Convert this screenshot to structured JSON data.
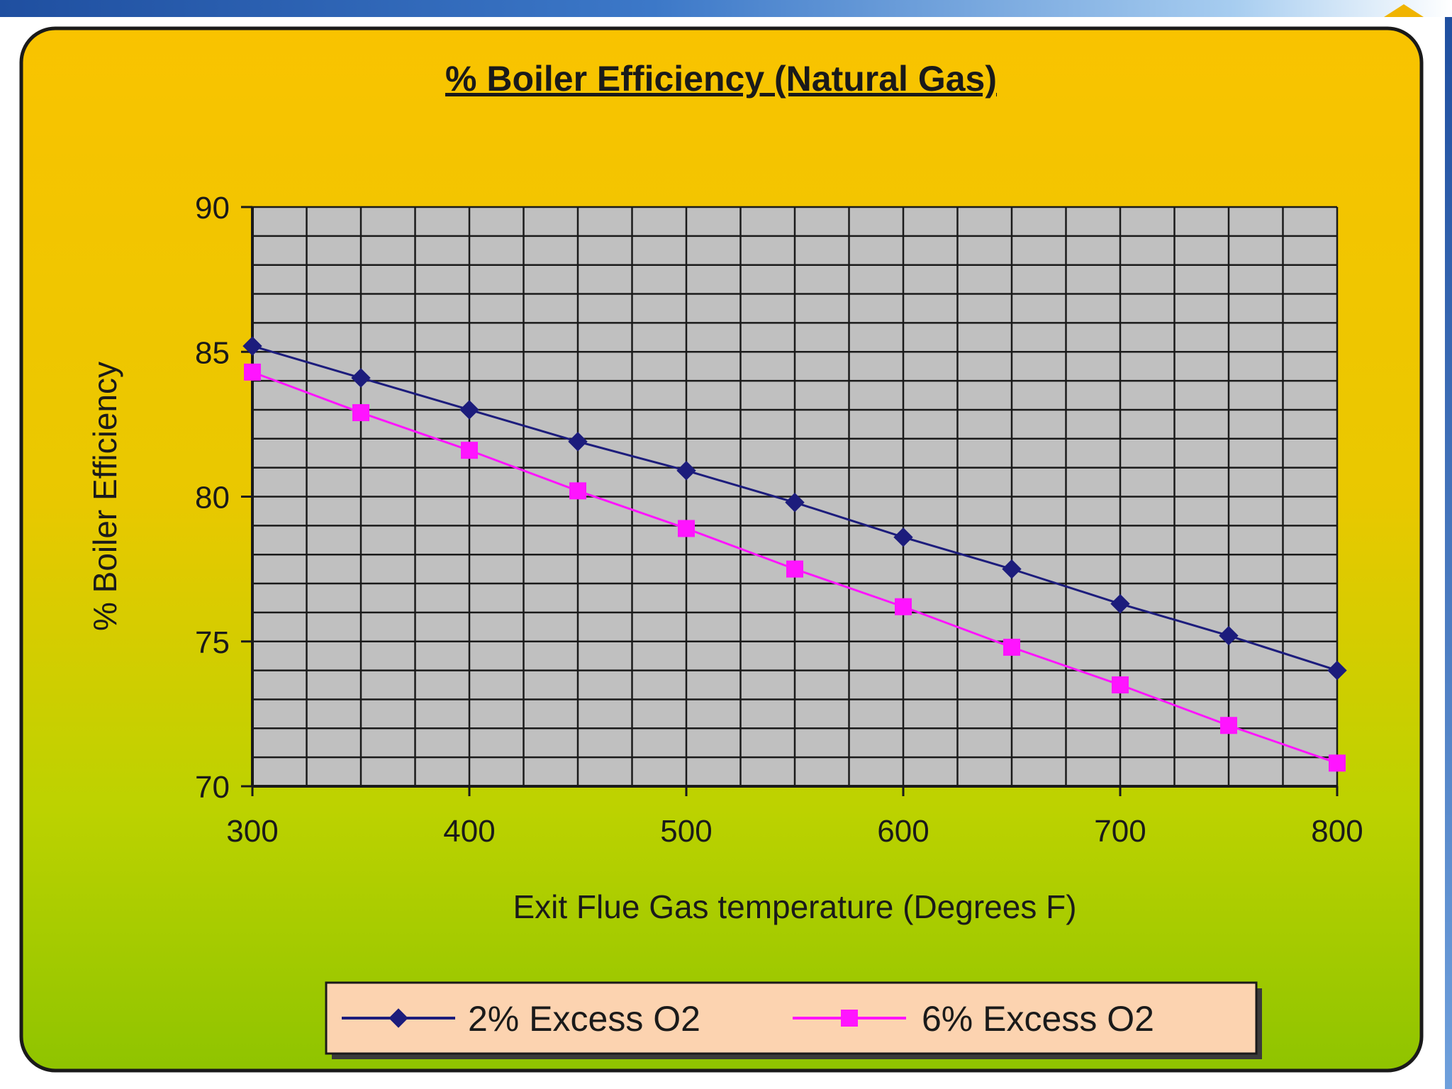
{
  "chart_data": {
    "type": "line",
    "title": "% Boiler Efficiency (Natural Gas)",
    "xlabel": "Exit Flue Gas temperature (Degrees F)",
    "ylabel": "% Boiler Efficiency",
    "xlim": [
      300,
      800
    ],
    "ylim": [
      70,
      90
    ],
    "x_ticks": [
      "300",
      "400",
      "500",
      "600",
      "700",
      "800"
    ],
    "y_ticks": [
      "70",
      "75",
      "80",
      "85",
      "90"
    ],
    "grid": true,
    "legend_position": "bottom",
    "x": [
      300,
      350,
      400,
      450,
      500,
      550,
      600,
      650,
      700,
      750,
      800
    ],
    "series": [
      {
        "name": "2% Excess O2",
        "color": "#1c1c7c",
        "marker": "diamond",
        "values": [
          85.2,
          84.1,
          83.0,
          81.9,
          80.9,
          79.8,
          78.6,
          77.5,
          76.3,
          75.2,
          74.0
        ]
      },
      {
        "name": "6% Excess O2",
        "color": "#ff14ff",
        "marker": "square",
        "values": [
          84.3,
          82.9,
          81.6,
          80.2,
          78.9,
          77.5,
          76.2,
          74.8,
          73.5,
          72.1,
          70.8
        ]
      }
    ]
  }
}
